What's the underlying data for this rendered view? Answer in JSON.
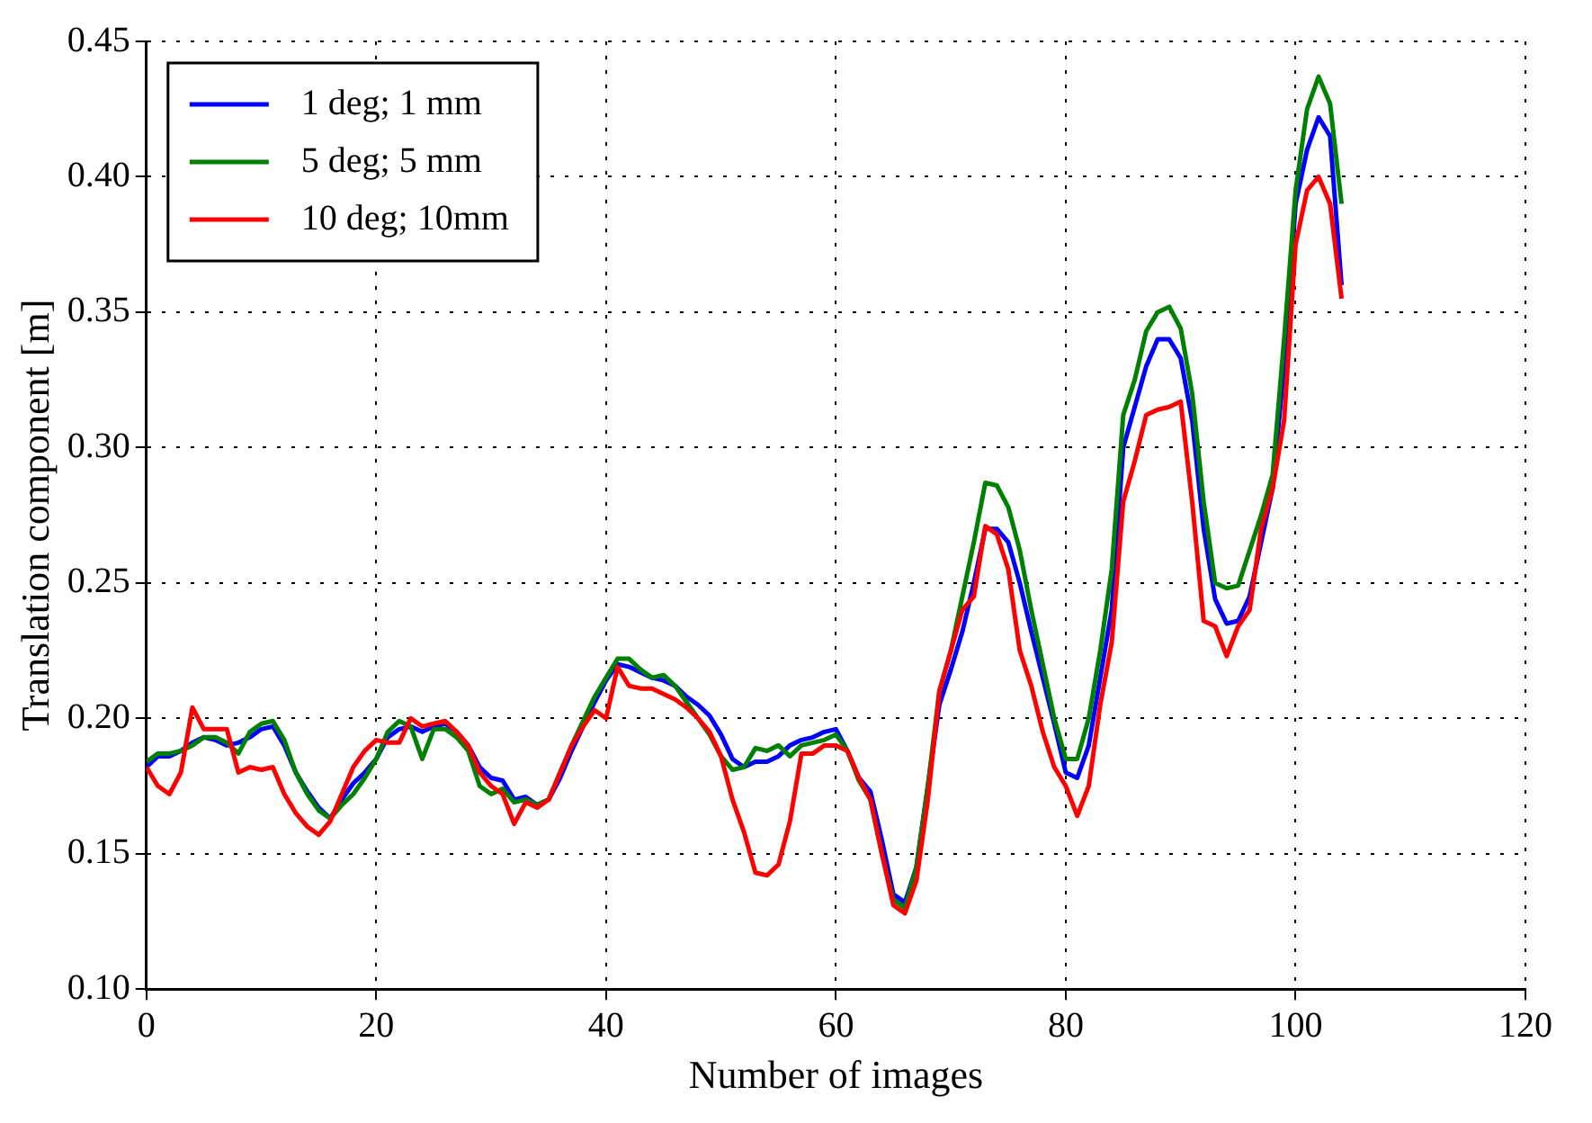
{
  "chart_data": {
    "type": "line",
    "xlabel": "Number of images",
    "ylabel": "Translation component [m]",
    "x": [
      0,
      1,
      2,
      3,
      4,
      5,
      6,
      7,
      8,
      9,
      10,
      11,
      12,
      13,
      14,
      15,
      16,
      17,
      18,
      19,
      20,
      21,
      22,
      23,
      24,
      25,
      26,
      27,
      28,
      29,
      30,
      31,
      32,
      33,
      34,
      35,
      36,
      37,
      38,
      39,
      40,
      41,
      42,
      43,
      44,
      45,
      46,
      47,
      48,
      49,
      50,
      51,
      52,
      53,
      54,
      55,
      56,
      57,
      58,
      59,
      60,
      61,
      62,
      63,
      64,
      65,
      66,
      67,
      68,
      69,
      70,
      71,
      72,
      73,
      74,
      75,
      76,
      77,
      78,
      79,
      80,
      81,
      82,
      83,
      84,
      85,
      86,
      87,
      88,
      89,
      90,
      91,
      92,
      93,
      94,
      95,
      96,
      97,
      98,
      99,
      100,
      101,
      102,
      103,
      104
    ],
    "series": [
      {
        "name": "1 deg; 1 mm",
        "color": "#0000ff",
        "values": [
          0.182,
          0.186,
          0.186,
          0.188,
          0.191,
          0.193,
          0.192,
          0.19,
          0.191,
          0.193,
          0.196,
          0.197,
          0.19,
          0.18,
          0.173,
          0.167,
          0.163,
          0.17,
          0.176,
          0.18,
          0.185,
          0.193,
          0.196,
          0.197,
          0.195,
          0.197,
          0.198,
          0.195,
          0.19,
          0.182,
          0.178,
          0.177,
          0.17,
          0.171,
          0.168,
          0.17,
          0.178,
          0.188,
          0.197,
          0.206,
          0.214,
          0.22,
          0.219,
          0.217,
          0.215,
          0.214,
          0.212,
          0.208,
          0.205,
          0.201,
          0.194,
          0.185,
          0.182,
          0.184,
          0.184,
          0.186,
          0.19,
          0.192,
          0.193,
          0.195,
          0.196,
          0.188,
          0.178,
          0.173,
          0.155,
          0.135,
          0.132,
          0.145,
          0.175,
          0.205,
          0.218,
          0.232,
          0.25,
          0.27,
          0.27,
          0.265,
          0.25,
          0.232,
          0.215,
          0.198,
          0.18,
          0.178,
          0.19,
          0.215,
          0.24,
          0.3,
          0.315,
          0.33,
          0.34,
          0.34,
          0.333,
          0.31,
          0.27,
          0.244,
          0.235,
          0.236,
          0.245,
          0.265,
          0.285,
          0.33,
          0.39,
          0.41,
          0.422,
          0.415,
          0.36
        ]
      },
      {
        "name": "5 deg; 5 mm",
        "color": "#008000",
        "values": [
          0.184,
          0.187,
          0.187,
          0.188,
          0.19,
          0.193,
          0.193,
          0.191,
          0.187,
          0.195,
          0.198,
          0.199,
          0.192,
          0.18,
          0.172,
          0.166,
          0.163,
          0.168,
          0.172,
          0.178,
          0.185,
          0.195,
          0.199,
          0.197,
          0.185,
          0.196,
          0.196,
          0.193,
          0.188,
          0.175,
          0.172,
          0.174,
          0.169,
          0.17,
          0.168,
          0.17,
          0.18,
          0.19,
          0.199,
          0.208,
          0.215,
          0.222,
          0.222,
          0.218,
          0.215,
          0.216,
          0.212,
          0.206,
          0.2,
          0.194,
          0.186,
          0.181,
          0.182,
          0.189,
          0.188,
          0.19,
          0.186,
          0.19,
          0.191,
          0.192,
          0.194,
          0.188,
          0.177,
          0.17,
          0.15,
          0.133,
          0.13,
          0.145,
          0.175,
          0.21,
          0.225,
          0.245,
          0.265,
          0.287,
          0.286,
          0.278,
          0.262,
          0.24,
          0.22,
          0.2,
          0.185,
          0.185,
          0.2,
          0.225,
          0.255,
          0.312,
          0.325,
          0.343,
          0.35,
          0.352,
          0.344,
          0.32,
          0.28,
          0.25,
          0.248,
          0.249,
          0.262,
          0.275,
          0.29,
          0.34,
          0.395,
          0.425,
          0.437,
          0.427,
          0.39
        ]
      },
      {
        "name": "10 deg; 10mm",
        "color": "#ff0000",
        "values": [
          0.182,
          0.175,
          0.172,
          0.18,
          0.204,
          0.196,
          0.196,
          0.196,
          0.18,
          0.182,
          0.181,
          0.182,
          0.172,
          0.165,
          0.16,
          0.157,
          0.162,
          0.172,
          0.182,
          0.188,
          0.192,
          0.191,
          0.191,
          0.2,
          0.197,
          0.198,
          0.199,
          0.195,
          0.19,
          0.18,
          0.175,
          0.172,
          0.161,
          0.169,
          0.167,
          0.17,
          0.18,
          0.19,
          0.197,
          0.203,
          0.2,
          0.219,
          0.212,
          0.211,
          0.211,
          0.209,
          0.207,
          0.204,
          0.2,
          0.195,
          0.186,
          0.17,
          0.158,
          0.143,
          0.142,
          0.146,
          0.162,
          0.187,
          0.187,
          0.19,
          0.19,
          0.188,
          0.178,
          0.17,
          0.15,
          0.131,
          0.128,
          0.14,
          0.17,
          0.21,
          0.225,
          0.24,
          0.245,
          0.271,
          0.268,
          0.255,
          0.225,
          0.212,
          0.195,
          0.182,
          0.175,
          0.164,
          0.175,
          0.205,
          0.228,
          0.28,
          0.295,
          0.312,
          0.314,
          0.315,
          0.317,
          0.28,
          0.236,
          0.234,
          0.223,
          0.234,
          0.24,
          0.27,
          0.285,
          0.31,
          0.375,
          0.395,
          0.4,
          0.39,
          0.355
        ]
      }
    ],
    "xlim": [
      0,
      120
    ],
    "xticks": [
      0,
      20,
      40,
      60,
      80,
      100,
      120
    ],
    "ylim": [
      0.1,
      0.45
    ],
    "yticks": [
      {
        "value": 0.1,
        "label": "0.10"
      },
      {
        "value": 0.15,
        "label": "0.15"
      },
      {
        "value": 0.2,
        "label": "0.20"
      },
      {
        "value": 0.25,
        "label": "0.25"
      },
      {
        "value": 0.3,
        "label": "0.30"
      },
      {
        "value": 0.35,
        "label": "0.35"
      },
      {
        "value": 0.4,
        "label": "0.40"
      },
      {
        "value": 0.45,
        "label": "0.45"
      }
    ],
    "grid": true,
    "legend": "top left",
    "marker": "none",
    "line_style": "solid"
  }
}
